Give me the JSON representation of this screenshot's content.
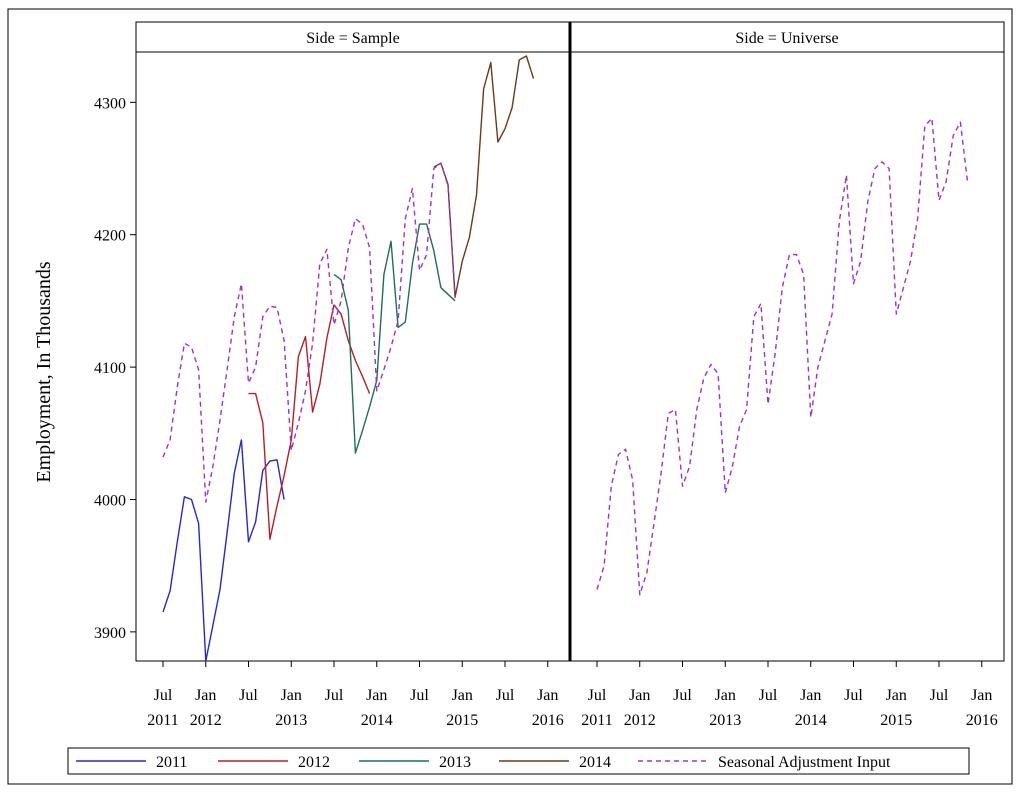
{
  "chart_data": {
    "type": "line",
    "ylabel": "Employment, In Thousands",
    "xlabel": "",
    "ylim": [
      3878,
      4338
    ],
    "y_ticks": [
      3900,
      4000,
      4100,
      4200,
      4300
    ],
    "x_ticks": [
      {
        "month": 7,
        "line1": "Jul",
        "line2": "2011"
      },
      {
        "month": 13,
        "line1": "Jan",
        "line2": "2012"
      },
      {
        "month": 19,
        "line1": "Jul",
        "line2": ""
      },
      {
        "month": 25,
        "line1": "Jan",
        "line2": "2013"
      },
      {
        "month": 31,
        "line1": "Jul",
        "line2": ""
      },
      {
        "month": 37,
        "line1": "Jan",
        "line2": "2014"
      },
      {
        "month": 43,
        "line1": "Jul",
        "line2": ""
      },
      {
        "month": 49,
        "line1": "Jan",
        "line2": "2015"
      },
      {
        "month": 55,
        "line1": "Jul",
        "line2": ""
      },
      {
        "month": 61,
        "line1": "Jan",
        "line2": "2016"
      }
    ],
    "panels": [
      {
        "label": "Side = Sample",
        "series": [
          {
            "name": "2011",
            "color": "#2828c8",
            "dash": false,
            "x": [
              7,
              8,
              9,
              10,
              11,
              12,
              13,
              14,
              15,
              16,
              17,
              18,
              19,
              20,
              21,
              22,
              23,
              24
            ],
            "y": [
              3915,
              3931,
              3968,
              4002,
              4000,
              3982,
              3878,
              3905,
              3932,
              3975,
              4020,
              4045,
              3968,
              3983,
              4022,
              4029,
              4030,
              4000
            ]
          },
          {
            "name": "2012",
            "color": "#b4202a",
            "dash": false,
            "x": [
              19,
              20,
              21,
              22,
              23,
              24,
              25,
              26,
              27,
              28,
              29,
              30,
              31,
              32,
              33,
              34,
              35,
              36
            ],
            "y": [
              4080,
              4080,
              4058,
              3970,
              3995,
              4018,
              4045,
              4108,
              4123,
              4066,
              4087,
              4122,
              4147,
              4140,
              4120,
              4105,
              4093,
              4080
            ]
          },
          {
            "name": "2013",
            "color": "#1f6f55",
            "dash": false,
            "x": [
              31,
              32,
              33,
              34,
              35,
              36,
              37,
              38,
              39,
              40,
              41,
              42,
              43,
              44,
              45,
              46,
              47,
              48
            ],
            "y": [
              4170,
              4166,
              4143,
              4035,
              4052,
              4070,
              4090,
              4170,
              4195,
              4130,
              4134,
              4178,
              4208,
              4208,
              4188,
              4160,
              4155,
              4150
            ]
          },
          {
            "name": "2014",
            "color": "#6b3a1a",
            "dash": false,
            "x": [
              45,
              46,
              47,
              48,
              49,
              50,
              51,
              52,
              53,
              54,
              55,
              56,
              57,
              58,
              59
            ],
            "y": [
              4251,
              4254,
              4238,
              4153,
              4180,
              4198,
              4230,
              4310,
              4330,
              4270,
              4280,
              4296,
              4332,
              4335,
              4318
            ]
          },
          {
            "name": "Seasonal Adjustment Input",
            "color": "#9a32cd",
            "dash": true,
            "x": [
              7,
              8,
              9,
              10,
              11,
              12,
              13,
              14,
              15,
              16,
              17,
              18,
              19,
              20,
              21,
              22,
              23,
              24,
              25,
              26,
              27,
              28,
              29,
              30,
              31,
              32,
              33,
              34,
              35,
              36,
              37,
              38,
              39,
              40,
              41,
              42,
              43,
              44,
              45,
              46,
              47,
              48
            ],
            "y": [
              4032,
              4045,
              4085,
              4118,
              4115,
              4098,
              3998,
              4025,
              4060,
              4098,
              4138,
              4163,
              4088,
              4100,
              4138,
              4146,
              4145,
              4120,
              4037,
              4058,
              4082,
              4118,
              4178,
              4189,
              4132,
              4150,
              4190,
              4212,
              4208,
              4190,
              4082,
              4098,
              4115,
              4135,
              4212,
              4235,
              4173,
              4185,
              4250,
              4254,
              4237,
              4152
            ]
          }
        ]
      },
      {
        "label": "Side = Universe",
        "series": [
          {
            "name": "Seasonal Adjustment Input",
            "color": "#9a32cd",
            "dash": true,
            "x": [
              7,
              8,
              9,
              10,
              11,
              12,
              13,
              14,
              15,
              16,
              17,
              18,
              19,
              20,
              21,
              22,
              23,
              24,
              25,
              26,
              27,
              28,
              29,
              30,
              31,
              32,
              33,
              34,
              35,
              36,
              37,
              38,
              39,
              40,
              41,
              42,
              43,
              44,
              45,
              46,
              47,
              48,
              49,
              50,
              51,
              52,
              53,
              54,
              55,
              56,
              57,
              58,
              59
            ],
            "y": [
              3932,
              3950,
              4010,
              4034,
              4038,
              4015,
              3928,
              3945,
              3982,
              4020,
              4065,
              4068,
              4010,
              4025,
              4068,
              4092,
              4102,
              4095,
              4005,
              4025,
              4055,
              4068,
              4138,
              4148,
              4072,
              4110,
              4160,
              4185,
              4185,
              4170,
              4062,
              4100,
              4120,
              4140,
              4210,
              4245,
              4163,
              4180,
              4225,
              4250,
              4255,
              4250,
              4140,
              4160,
              4180,
              4212,
              4282,
              4288,
              4226,
              4240,
              4275,
              4285,
              4240
            ]
          }
        ]
      }
    ],
    "legend": {
      "placement": "bottom",
      "entries": [
        {
          "label": "2011",
          "color": "#2828c8",
          "dash": false
        },
        {
          "label": "2012",
          "color": "#b4202a",
          "dash": false
        },
        {
          "label": "2013",
          "color": "#1f6f55",
          "dash": false
        },
        {
          "label": "2014",
          "color": "#6b3a1a",
          "dash": false
        },
        {
          "label": "Seasonal Adjustment Input",
          "color": "#9a32cd",
          "dash": true
        }
      ]
    }
  }
}
